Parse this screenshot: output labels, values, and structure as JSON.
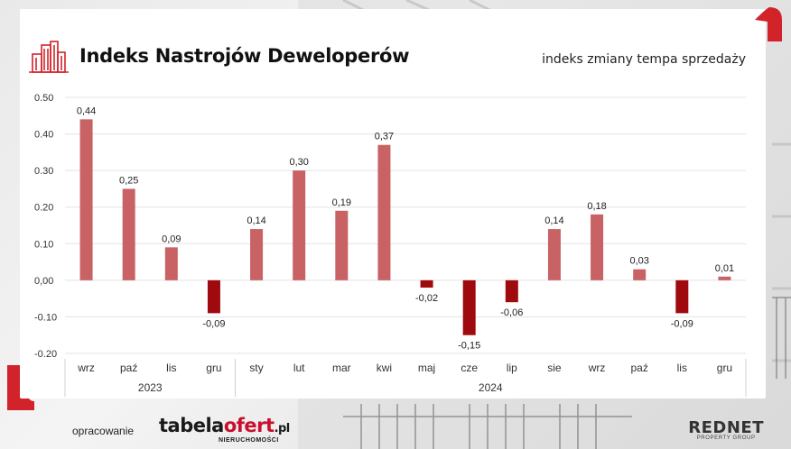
{
  "header": {
    "title": "Indeks Nastrojów Deweloperów",
    "subtitle": "indeks zmiany tempa sprzedaży"
  },
  "footer": {
    "prepared_by": "opracowanie",
    "logo_tabelaofert": {
      "part1": "tabela",
      "part2": "ofert",
      "part3": ".pl",
      "sub": "NIERUCHOMOŚCI"
    },
    "logo_rednet": {
      "main": "REDNET",
      "sub": "PROPERTY GROUP"
    }
  },
  "colors": {
    "positive_bar": "#c96264",
    "negative_bar": "#9e0a0e",
    "accent": "#c8102e",
    "grid": "#e3e3e3"
  },
  "chart_data": {
    "type": "bar",
    "title": "Indeks Nastrojów Deweloperów",
    "subtitle": "indeks zmiany tempa sprzedaży",
    "categories": [
      "wrz",
      "paź",
      "lis",
      "gru",
      "sty",
      "lut",
      "mar",
      "kwi",
      "maj",
      "cze",
      "lip",
      "sie",
      "wrz",
      "paź",
      "lis",
      "gru"
    ],
    "category_groups": [
      {
        "label": "2023",
        "count": 4
      },
      {
        "label": "2024",
        "count": 12
      }
    ],
    "values": [
      0.44,
      0.25,
      0.09,
      -0.09,
      0.14,
      0.3,
      0.19,
      0.37,
      -0.02,
      -0.15,
      -0.06,
      0.14,
      0.18,
      0.03,
      -0.09,
      0.01
    ],
    "value_labels": [
      "0,44",
      "0,25",
      "0,09",
      "-0,09",
      "0,14",
      "0,30",
      "0,19",
      "0,37",
      "-0,02",
      "-0,15",
      "-0,06",
      "0,14",
      "0,18",
      "0,03",
      "-0,09",
      "0,01"
    ],
    "ylim": [
      -0.2,
      0.5
    ],
    "yticks": [
      0.5,
      0.4,
      0.3,
      0.2,
      0.1,
      0.0,
      -0.1,
      -0.2
    ],
    "ytick_labels": [
      "0.50",
      "0.40",
      "0.30",
      "0.20",
      "0.10",
      "0,00",
      "-0.10",
      "-0.20"
    ],
    "grid": true,
    "legend": "none"
  }
}
